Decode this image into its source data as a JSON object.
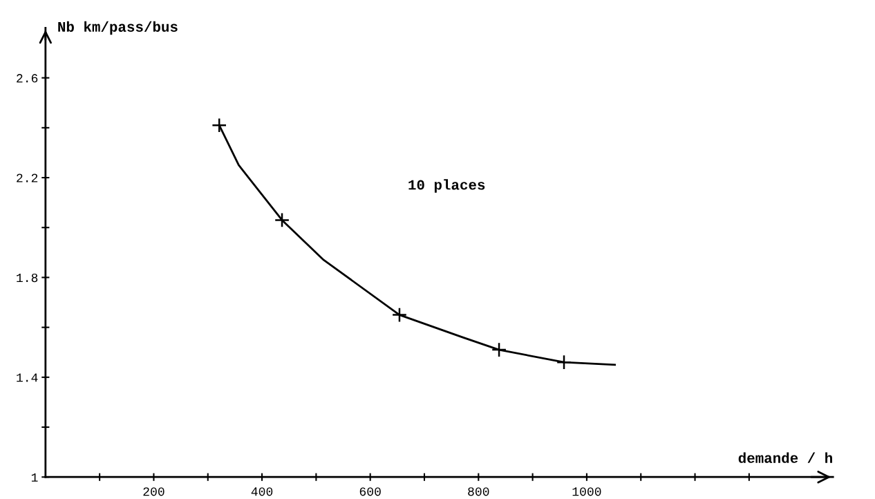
{
  "chart_data": {
    "type": "line",
    "xlabel": "demande / h",
    "ylabel": "Nb km/pass/bus",
    "xlim": [
      0,
      1455
    ],
    "ylim": [
      1,
      2.8
    ],
    "xticks": [
      {
        "value": 100,
        "label": null
      },
      200,
      {
        "value": 300,
        "label": null
      },
      400,
      {
        "value": 500,
        "label": null
      },
      600,
      {
        "value": 700,
        "label": null
      },
      800,
      {
        "value": 900,
        "label": null
      },
      1000,
      {
        "value": 1100,
        "label": null
      },
      {
        "value": 1200,
        "label": null
      },
      {
        "value": 1300,
        "label": null
      }
    ],
    "yticks": [
      1,
      {
        "value": 1.2,
        "label": null
      },
      1.4,
      {
        "value": 1.6,
        "label": null
      },
      1.8,
      {
        "value": 2.0,
        "label": null
      },
      2.2,
      {
        "value": 2.4,
        "label": null
      },
      2.6
    ],
    "grid": false,
    "legend": false,
    "line_style": "solid",
    "annotations": [
      "10 places"
    ],
    "series": [
      {
        "color": "#000000",
        "marker": "none",
        "x": [
          321,
          357,
          437,
          514,
          654,
          771,
          838,
          958,
          1052
        ],
        "values": [
          2.41,
          2.25,
          2.03,
          1.87,
          1.65,
          1.56,
          1.51,
          1.46,
          1.45
        ]
      },
      {
        "type": "scatter",
        "color": "#000000",
        "marker": "cross",
        "x": [
          321,
          437,
          654,
          838,
          958
        ],
        "values": [
          2.41,
          2.03,
          1.65,
          1.51,
          1.46
        ]
      }
    ]
  }
}
